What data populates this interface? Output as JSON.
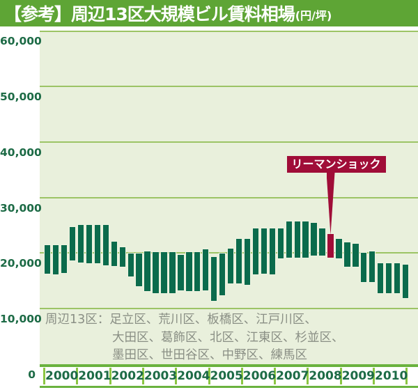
{
  "title": {
    "main": "【参考】周辺13区大規模ビル賃料相場",
    "unit": "(円/坪)"
  },
  "annotation": {
    "label": "リーマンショック"
  },
  "footnote": {
    "line1": "周辺13区：足立区、荒川区、板橋区、江戸川区、",
    "line2": "大田区、葛飾区、北区、江東区、杉並区、",
    "line3": "墨田区、世田谷区、中野区、練馬区"
  },
  "colors": {
    "title_bg": "#5ea535",
    "plot_bg": "#e9f0dc",
    "gridline": "#9cc465",
    "bar_green": "#0b6b4c",
    "bar_red": "#a00d38",
    "axis_green": "#6ab23e",
    "tick_green": "#8cc643",
    "label_green": "#1d6b46",
    "footnote_gray": "#8a8f85"
  },
  "chart_data": {
    "type": "bar",
    "subtype": "floating-range-bars",
    "title": "【参考】周辺13区大規模ビル賃料相場(円/坪)",
    "ylabel": "円/坪",
    "ylim": [
      0,
      60000
    ],
    "yticks": [
      0,
      10000,
      20000,
      30000,
      40000,
      50000,
      60000
    ],
    "ytick_labels": [
      "0",
      "10,000",
      "20,000",
      "30,000",
      "40,000",
      "50,000",
      "60,000"
    ],
    "grid": true,
    "years": [
      "2000",
      "2001",
      "2002",
      "2003",
      "2004",
      "2005",
      "2006",
      "2007",
      "2008",
      "2009",
      "2010"
    ],
    "bars_per_year": 4,
    "highlight_index": 34,
    "highlight_label": "リーマンショック",
    "bars": [
      {
        "label": "2000 Q1",
        "high": 21500,
        "low": 16100
      },
      {
        "label": "2000 Q2",
        "high": 21500,
        "low": 16000
      },
      {
        "label": "2000 Q3",
        "high": 21600,
        "low": 16300
      },
      {
        "label": "2000 Q4",
        "high": 24800,
        "low": 18500
      },
      {
        "label": "2001 Q1",
        "high": 25200,
        "low": 18200
      },
      {
        "label": "2001 Q2",
        "high": 25200,
        "low": 18000
      },
      {
        "label": "2001 Q3",
        "high": 25200,
        "low": 18000
      },
      {
        "label": "2001 Q4",
        "high": 25200,
        "low": 17600
      },
      {
        "label": "2002 Q1",
        "high": 22200,
        "low": 17500
      },
      {
        "label": "2002 Q2",
        "high": 21200,
        "low": 17400
      },
      {
        "label": "2002 Q3",
        "high": 20100,
        "low": 15700
      },
      {
        "label": "2002 Q4",
        "high": 20000,
        "low": 13900
      },
      {
        "label": "2003 Q1",
        "high": 20400,
        "low": 13000
      },
      {
        "label": "2003 Q2",
        "high": 20300,
        "low": 12700
      },
      {
        "label": "2003 Q3",
        "high": 20300,
        "low": 12700
      },
      {
        "label": "2003 Q4",
        "high": 20300,
        "low": 12700
      },
      {
        "label": "2004 Q1",
        "high": 19800,
        "low": 13200
      },
      {
        "label": "2004 Q2",
        "high": 20300,
        "low": 13000
      },
      {
        "label": "2004 Q3",
        "high": 20300,
        "low": 13000
      },
      {
        "label": "2004 Q4",
        "high": 20800,
        "low": 13200
      },
      {
        "label": "2005 Q1",
        "high": 19400,
        "low": 11300
      },
      {
        "label": "2005 Q2",
        "high": 20000,
        "low": 12300
      },
      {
        "label": "2005 Q3",
        "high": 20900,
        "low": 14400
      },
      {
        "label": "2005 Q4",
        "high": 22700,
        "low": 14400
      },
      {
        "label": "2006 Q1",
        "high": 22700,
        "low": 14200
      },
      {
        "label": "2006 Q2",
        "high": 24600,
        "low": 16000
      },
      {
        "label": "2006 Q3",
        "high": 24600,
        "low": 16200
      },
      {
        "label": "2006 Q4",
        "high": 24600,
        "low": 16000
      },
      {
        "label": "2007 Q1",
        "high": 24600,
        "low": 18900
      },
      {
        "label": "2007 Q2",
        "high": 25800,
        "low": 19100
      },
      {
        "label": "2007 Q3",
        "high": 25800,
        "low": 19100
      },
      {
        "label": "2007 Q4",
        "high": 25800,
        "low": 19100
      },
      {
        "label": "2008 Q1",
        "high": 25600,
        "low": 19400
      },
      {
        "label": "2008 Q2",
        "high": 24600,
        "low": 19400
      },
      {
        "label": "2008 Q3",
        "high": 23500,
        "low": 19100
      },
      {
        "label": "2008 Q4",
        "high": 22700,
        "low": 18900
      },
      {
        "label": "2009 Q1",
        "high": 22000,
        "low": 17450
      },
      {
        "label": "2009 Q2",
        "high": 21800,
        "low": 17450
      },
      {
        "label": "2009 Q3",
        "high": 20200,
        "low": 14600
      },
      {
        "label": "2009 Q4",
        "high": 20400,
        "low": 14700
      },
      {
        "label": "2010 Q1",
        "high": 18250,
        "low": 12700
      },
      {
        "label": "2010 Q2",
        "high": 18250,
        "low": 12700
      },
      {
        "label": "2010 Q3",
        "high": 18250,
        "low": 12700
      },
      {
        "label": "2010 Q4",
        "high": 18100,
        "low": 11800
      }
    ]
  }
}
